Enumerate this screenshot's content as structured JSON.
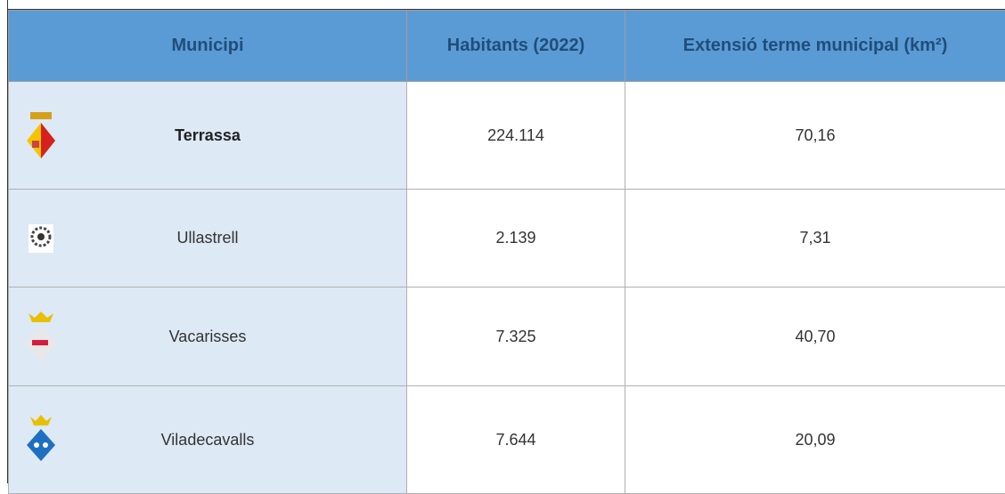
{
  "table": {
    "columns": [
      "Municipi",
      "Habitants (2022)",
      "Extensió terme municipal (km²)"
    ],
    "rows": [
      [
        "Terrassa",
        "224.114",
        "70,16"
      ],
      [
        "Ullastrell",
        "2.139",
        "7,31"
      ],
      [
        "Vacarisses",
        "7.325",
        "40,70"
      ],
      [
        "Viladecavalls",
        "7.644",
        "20,09"
      ]
    ]
  }
}
